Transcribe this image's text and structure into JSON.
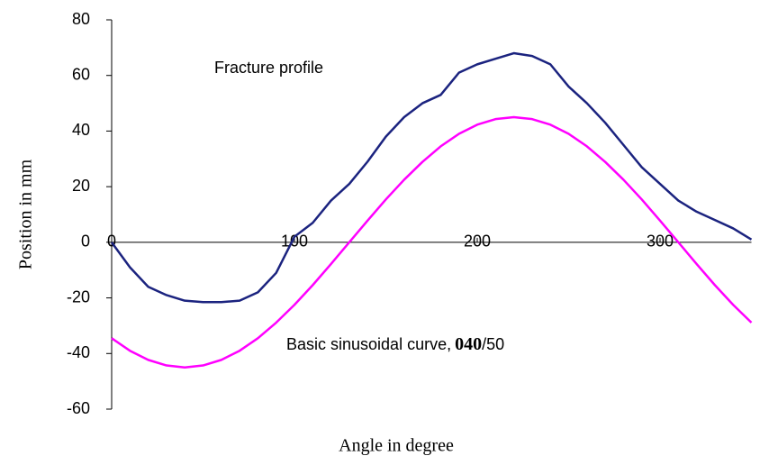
{
  "chart_data": {
    "type": "line",
    "xlabel": "Angle  in degree",
    "ylabel": "Position in mm",
    "annotation": "Fracture profile",
    "sinusoid_label": [
      "Basic sinusoidal curve,",
      "040",
      "/50"
    ],
    "x": [
      0,
      10,
      20,
      30,
      40,
      50,
      60,
      70,
      80,
      90,
      100,
      110,
      120,
      130,
      140,
      150,
      160,
      170,
      180,
      190,
      200,
      210,
      220,
      230,
      240,
      250,
      260,
      270,
      280,
      290,
      300,
      310,
      320,
      330,
      340,
      350
    ],
    "series": [
      {
        "color": "#1b237f",
        "values": [
          0,
          -9,
          -16,
          -19,
          -21,
          -21.5,
          -21.5,
          -21,
          -18,
          -11,
          2,
          7,
          15,
          21,
          29,
          38,
          45,
          50,
          53,
          61,
          64,
          66,
          68,
          67,
          64,
          56,
          50,
          43,
          35,
          27,
          21,
          15,
          11,
          8,
          5,
          1
        ]
      },
      {
        "color": "#ff00ff",
        "values": [
          -34.5,
          -39,
          -42.3,
          -44.3,
          -45,
          -44.3,
          -42.3,
          -39,
          -34.5,
          -28.9,
          -22.5,
          -15.4,
          -7.8,
          0,
          7.8,
          15.4,
          22.5,
          28.9,
          34.5,
          39,
          42.3,
          44.3,
          45,
          44.3,
          42.3,
          39,
          34.5,
          28.9,
          22.5,
          15.4,
          7.8,
          0,
          -7.8,
          -15.4,
          -22.5,
          -28.9
        ]
      }
    ],
    "xlim": [
      0,
      350
    ],
    "ylim": [
      -60,
      80
    ],
    "xticks": [
      0,
      100,
      200,
      300
    ],
    "yticks": [
      -60,
      -40,
      -20,
      0,
      20,
      40,
      60,
      80
    ]
  }
}
